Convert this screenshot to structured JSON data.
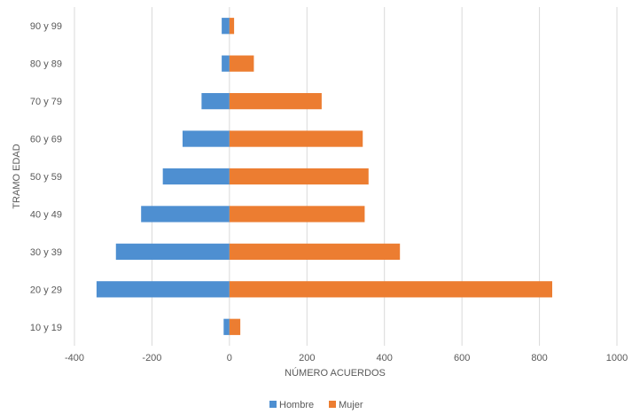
{
  "chart_data": {
    "type": "bar",
    "orientation": "horizontal",
    "stacked": true,
    "categories": [
      "10 y 19",
      "20 y 29",
      "30 y 39",
      "40 y 49",
      "50 y 59",
      "60 y 69",
      "70 y 79",
      "80 y 89",
      "90 y 99"
    ],
    "series": [
      {
        "name": "Hombre",
        "color": "#4e8fd1",
        "values": [
          -15,
          -343,
          -293,
          -228,
          -172,
          -121,
          -72,
          -20,
          -20
        ]
      },
      {
        "name": "Mujer",
        "color": "#ec7d31",
        "values": [
          28,
          833,
          440,
          349,
          359,
          344,
          238,
          63,
          12
        ]
      }
    ],
    "xlabel": "NÚMERO ACUERDOS",
    "ylabel": "TRAMO EDAD",
    "xlim": [
      -400,
      1000
    ],
    "xticks": [
      "-400",
      "-200",
      "0",
      "200",
      "400",
      "600",
      "800",
      "1000"
    ],
    "grid": "vertical",
    "legend": "bottom"
  }
}
